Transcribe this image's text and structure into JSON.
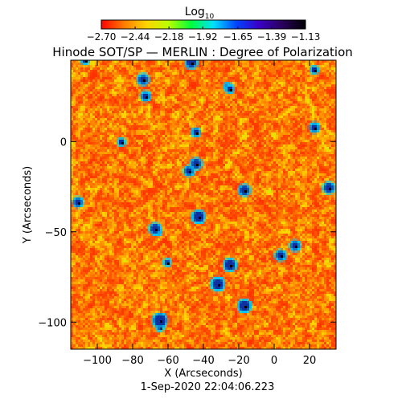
{
  "chart_data": {
    "type": "heatmap",
    "title": "Hinode SOT/SP — MERLIN : Degree of Polarization",
    "xlabel": "X (Arcseconds)",
    "ylabel": "Y (Arcseconds)",
    "timestamp": "1-Sep-2020 22:04:06.223",
    "xlim": [
      -115,
      35
    ],
    "ylim": [
      -115,
      45
    ],
    "xticks": [
      -100,
      -80,
      -60,
      -40,
      -20,
      0,
      20
    ],
    "xtick_labels": [
      "−100",
      "−80",
      "−60",
      "−40",
      "−20",
      "0",
      "20"
    ],
    "yticks": [
      0,
      -50,
      -100
    ],
    "ytick_labels": [
      "0",
      "−50",
      "−100"
    ],
    "colorbar": {
      "label_base": "Log",
      "label_sub": "10",
      "range": [
        -2.7,
        -1.13
      ],
      "ticks": [
        -2.7,
        -2.44,
        -2.18,
        -1.92,
        -1.65,
        -1.39,
        -1.13
      ],
      "tick_labels": [
        "−2.70",
        "−2.44",
        "−2.18",
        "−1.92",
        "−1.65",
        "−1.39",
        "−1.13"
      ],
      "colormap": [
        "#ff0000",
        "#ff7a00",
        "#ffd400",
        "#b8ff00",
        "#00ff3a",
        "#00e0ff",
        "#0044ff",
        "#3a00c8",
        "#2a0060",
        "#000000"
      ]
    }
  }
}
